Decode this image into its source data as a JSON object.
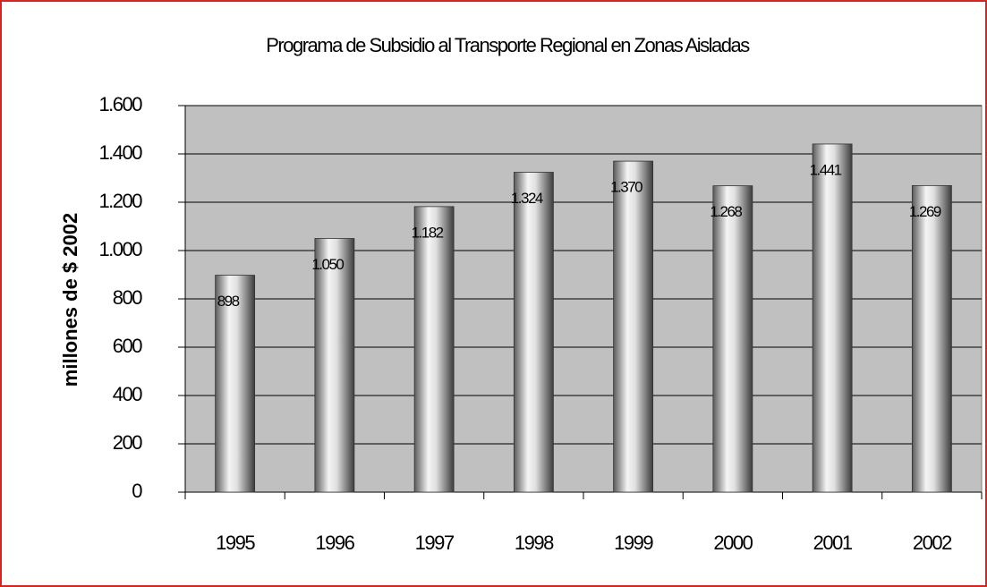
{
  "chart_data": {
    "type": "bar",
    "title": "Programa de Subsidio al Transporte Regional en Zonas Aisladas",
    "ylabel": "millones de $ 2002",
    "categories": [
      "1995",
      "1996",
      "1997",
      "1998",
      "1999",
      "2000",
      "2001",
      "2002"
    ],
    "values": [
      898,
      1050,
      1182,
      1324,
      1370,
      1268,
      1441,
      1269
    ],
    "value_labels": [
      "898",
      "1.050",
      "1.182",
      "1.324",
      "1.370",
      "1.268",
      "1.441",
      "1.269"
    ],
    "color": "#a0a0a0",
    "ylim": [
      0,
      1600
    ],
    "yticks": [
      0,
      200,
      400,
      600,
      800,
      {
        "value": 1000,
        "label": "1.000"
      },
      {
        "value": 1200,
        "label": "1.200"
      },
      {
        "value": 1400,
        "label": "1.400"
      },
      {
        "value": 1600,
        "label": "1.600"
      }
    ],
    "grid": true
  }
}
